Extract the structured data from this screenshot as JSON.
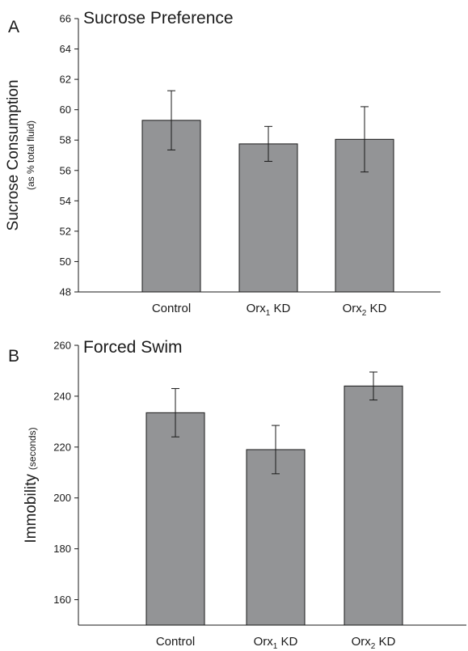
{
  "chart_data": [
    {
      "type": "bar",
      "panel": "A",
      "title": "Sucrose Preference",
      "ylabel": "Sucrose Consumption",
      "ylabel_sub": "(as % total fluid)",
      "ylim": [
        48,
        66
      ],
      "yticks": [
        48,
        50,
        52,
        54,
        56,
        58,
        60,
        62,
        64,
        66
      ],
      "categories": [
        {
          "base": "Control",
          "sub": "",
          "rest": ""
        },
        {
          "base": "Orx",
          "sub": "1",
          "rest": " KD"
        },
        {
          "base": "Orx",
          "sub": "2",
          "rest": " KD"
        }
      ],
      "values": [
        59.3,
        57.75,
        58.05
      ],
      "errors": [
        1.95,
        1.15,
        2.15
      ],
      "bar_color": "#939496",
      "grid": false
    },
    {
      "type": "bar",
      "panel": "B",
      "title": "Forced Swim",
      "ylabel": "Immobility",
      "ylabel_sub": "(seconds)",
      "ylim": [
        150,
        260
      ],
      "yticks": [
        160,
        180,
        200,
        220,
        240,
        260
      ],
      "categories": [
        {
          "base": "Control",
          "sub": "",
          "rest": ""
        },
        {
          "base": "Orx",
          "sub": "1",
          "rest": " KD"
        },
        {
          "base": "Orx",
          "sub": "2",
          "rest": " KD"
        }
      ],
      "values": [
        233.5,
        219,
        244
      ],
      "errors": [
        9.5,
        9.5,
        5.5
      ],
      "bar_color": "#939496",
      "grid": false
    }
  ]
}
